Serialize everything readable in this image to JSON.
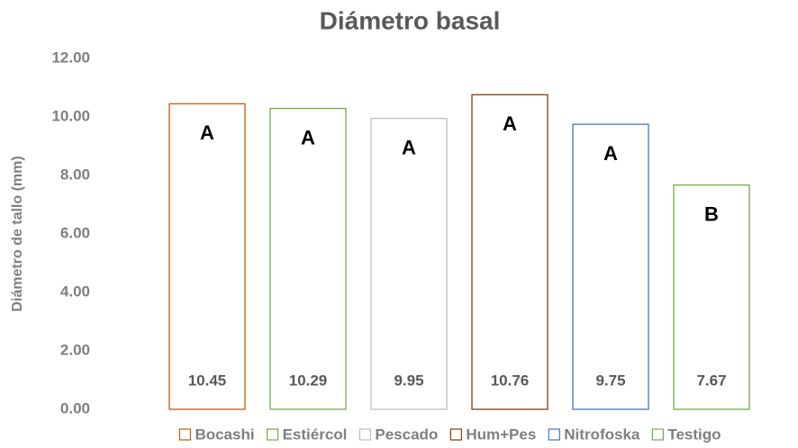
{
  "chart_data": {
    "type": "bar",
    "title": "Diámetro basal",
    "y_label": "Diámetro de tallo (mm)",
    "categories": [
      null
    ],
    "series": [
      {
        "name": "Bocashi",
        "color": "#c55a11",
        "values": [
          10.45
        ],
        "group": "A"
      },
      {
        "name": "Estiércol",
        "color": "#70ad47",
        "values": [
          10.29
        ],
        "group": "A"
      },
      {
        "name": "Pescado",
        "color": "#bfbfbf",
        "values": [
          9.95
        ],
        "group": "A"
      },
      {
        "name": "Hum+Pes",
        "color": "#843c0c",
        "values": [
          10.76
        ],
        "group": "A"
      },
      {
        "name": "Nitrofoska",
        "color": "#4472c4",
        "values": [
          9.75
        ],
        "group": "A"
      },
      {
        "name": "Testigo",
        "color": "#70ad47",
        "values": [
          7.67
        ],
        "group": "B"
      }
    ],
    "ylim": [
      0,
      12
    ],
    "yticks": [
      {
        "value": 0,
        "label": "0.00"
      },
      {
        "value": 2,
        "label": "2.00"
      },
      {
        "value": 4,
        "label": "4.00"
      },
      {
        "value": 6,
        "label": "6.00"
      },
      {
        "value": 8,
        "label": "8.00"
      },
      {
        "value": 10,
        "label": "10.00"
      },
      {
        "value": 12,
        "label": "12.00"
      }
    ],
    "grid": false,
    "legend": "bottom"
  }
}
